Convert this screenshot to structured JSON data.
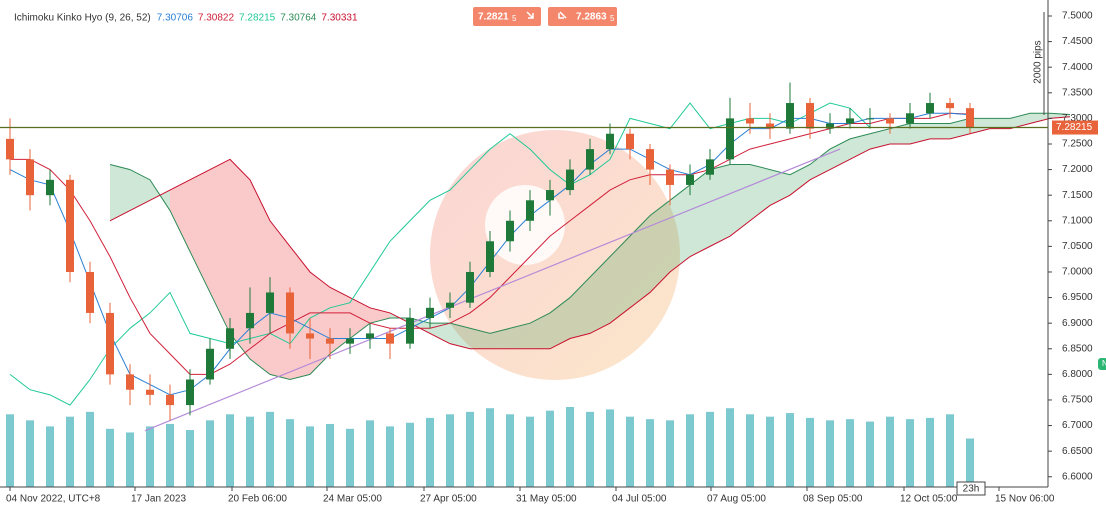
{
  "chart_data": {
    "type": "candlestick",
    "legend_title": "Ichimoku Kinko Hyo (9, 26, 52)",
    "up_color": "#1f7a3a",
    "down_color": "#e8633a",
    "ylim": [
      6.58,
      7.53125
    ],
    "yticks": [
      {
        "value": 7.5,
        "label": "7.5000"
      },
      {
        "value": 7.45,
        "label": "7.4500"
      },
      {
        "value": 7.4,
        "label": "7.4000"
      },
      {
        "value": 7.35,
        "label": "7.3500"
      },
      {
        "value": 7.3,
        "label": "7.3000"
      },
      {
        "value": 7.25,
        "label": "7.2500"
      },
      {
        "value": 7.2,
        "label": "7.2000"
      },
      {
        "value": 7.15,
        "label": "7.1500"
      },
      {
        "value": 7.1,
        "label": "7.1000"
      },
      {
        "value": 7.05,
        "label": "7.0500"
      },
      {
        "value": 7.0,
        "label": "7.0000"
      },
      {
        "value": 6.95,
        "label": "6.9500"
      },
      {
        "value": 6.9,
        "label": "6.9000"
      },
      {
        "value": 6.85,
        "label": "6.8500"
      },
      {
        "value": 6.8,
        "label": "6.8000"
      },
      {
        "value": 6.75,
        "label": "6.7500"
      },
      {
        "value": 6.7,
        "label": "6.7000"
      },
      {
        "value": 6.65,
        "label": "6.6500"
      },
      {
        "value": 6.6,
        "label": "6.6000"
      }
    ],
    "xticks": [
      {
        "value": 0,
        "label": "04 Nov 2022, UTC+8"
      },
      {
        "value": 6.25,
        "label": "17 Jan 2023"
      },
      {
        "value": 11.1,
        "label": "20 Feb 06:00"
      },
      {
        "value": 15.85,
        "label": "24 Mar 05:00"
      },
      {
        "value": 20.7,
        "label": "27 Apr 05:00"
      },
      {
        "value": 25.5,
        "label": "31 May 05:00"
      },
      {
        "value": 30.3,
        "label": "04 Jul 05:00"
      },
      {
        "value": 35.05,
        "label": "07 Aug 05:00"
      },
      {
        "value": 39.85,
        "label": "08 Sep 05:00"
      },
      {
        "value": 44.7,
        "label": "12 Oct 05:00"
      },
      {
        "value": 49.45,
        "label": "15 Nov 06:00"
      }
    ],
    "candles": [
      [
        7.26,
        7.3,
        7.19,
        7.22
      ],
      [
        7.22,
        7.24,
        7.12,
        7.15
      ],
      [
        7.15,
        7.2,
        7.13,
        7.18
      ],
      [
        7.18,
        7.19,
        6.98,
        7.0
      ],
      [
        7.0,
        7.02,
        6.9,
        6.92
      ],
      [
        6.92,
        6.94,
        6.78,
        6.8
      ],
      [
        6.8,
        6.82,
        6.74,
        6.77
      ],
      [
        6.77,
        6.8,
        6.74,
        6.76
      ],
      [
        6.76,
        6.78,
        6.71,
        6.74
      ],
      [
        6.74,
        6.81,
        6.72,
        6.79
      ],
      [
        6.79,
        6.87,
        6.78,
        6.85
      ],
      [
        6.85,
        6.91,
        6.83,
        6.89
      ],
      [
        6.89,
        6.97,
        6.86,
        6.92
      ],
      [
        6.92,
        6.99,
        6.88,
        6.96
      ],
      [
        6.96,
        6.97,
        6.85,
        6.88
      ],
      [
        6.88,
        6.91,
        6.83,
        6.87
      ],
      [
        6.87,
        6.89,
        6.83,
        6.86
      ],
      [
        6.86,
        6.89,
        6.84,
        6.87
      ],
      [
        6.87,
        6.9,
        6.85,
        6.88
      ],
      [
        6.88,
        6.89,
        6.83,
        6.86
      ],
      [
        6.86,
        6.93,
        6.85,
        6.91
      ],
      [
        6.91,
        6.95,
        6.89,
        6.93
      ],
      [
        6.93,
        6.96,
        6.91,
        6.94
      ],
      [
        6.94,
        7.02,
        6.93,
        7.0
      ],
      [
        7.0,
        7.08,
        6.99,
        7.06
      ],
      [
        7.06,
        7.12,
        7.04,
        7.1
      ],
      [
        7.1,
        7.16,
        7.08,
        7.14
      ],
      [
        7.14,
        7.18,
        7.11,
        7.16
      ],
      [
        7.16,
        7.22,
        7.15,
        7.2
      ],
      [
        7.2,
        7.26,
        7.19,
        7.24
      ],
      [
        7.24,
        7.29,
        7.23,
        7.27
      ],
      [
        7.27,
        7.28,
        7.22,
        7.24
      ],
      [
        7.24,
        7.25,
        7.17,
        7.2
      ],
      [
        7.2,
        7.21,
        7.13,
        7.17
      ],
      [
        7.17,
        7.21,
        7.15,
        7.19
      ],
      [
        7.19,
        7.24,
        7.18,
        7.22
      ],
      [
        7.22,
        7.34,
        7.21,
        7.3
      ],
      [
        7.3,
        7.33,
        7.27,
        7.29
      ],
      [
        7.29,
        7.31,
        7.26,
        7.28
      ],
      [
        7.28,
        7.37,
        7.27,
        7.33
      ],
      [
        7.33,
        7.34,
        7.26,
        7.28
      ],
      [
        7.28,
        7.31,
        7.27,
        7.29
      ],
      [
        7.29,
        7.32,
        7.28,
        7.3
      ],
      [
        7.3,
        7.32,
        7.28,
        7.3
      ],
      [
        7.3,
        7.31,
        7.27,
        7.29
      ],
      [
        7.29,
        7.33,
        7.28,
        7.31
      ],
      [
        7.31,
        7.35,
        7.3,
        7.33
      ],
      [
        7.33,
        7.34,
        7.3,
        7.32
      ],
      [
        7.32,
        7.33,
        7.27,
        7.28215
      ]
    ],
    "volume": [
      60,
      55,
      50,
      58,
      62,
      48,
      45,
      50,
      52,
      47,
      55,
      60,
      58,
      62,
      56,
      50,
      52,
      48,
      55,
      50,
      53,
      57,
      60,
      62,
      65,
      60,
      58,
      63,
      66,
      62,
      64,
      58,
      56,
      55,
      60,
      62,
      65,
      60,
      58,
      61,
      57,
      55,
      56,
      54,
      58,
      56,
      57,
      60,
      40
    ],
    "volume_color": "#5bbcc4",
    "tenkan": {
      "color": "#2a7fd4",
      "values": [
        7.2,
        7.18,
        7.17,
        7.08,
        6.98,
        6.88,
        6.8,
        6.78,
        6.76,
        6.77,
        6.8,
        6.85,
        6.89,
        6.92,
        6.91,
        6.89,
        6.87,
        6.87,
        6.87,
        6.87,
        6.89,
        6.91,
        6.93,
        6.97,
        7.02,
        7.07,
        7.11,
        7.14,
        7.17,
        7.21,
        7.24,
        7.24,
        7.22,
        7.2,
        7.19,
        7.21,
        7.25,
        7.28,
        7.28,
        7.3,
        7.3,
        7.29,
        7.29,
        7.3,
        7.3,
        7.3,
        7.31,
        7.31,
        7.30706
      ]
    },
    "kijun": {
      "color": "#d0203a",
      "values": [
        7.22,
        7.22,
        7.2,
        7.16,
        7.1,
        7.03,
        6.95,
        6.88,
        6.84,
        6.8,
        6.8,
        6.82,
        6.85,
        6.88,
        6.9,
        6.92,
        6.92,
        6.92,
        6.9,
        6.89,
        6.89,
        6.89,
        6.9,
        6.92,
        6.95,
        6.99,
        7.03,
        7.07,
        7.1,
        7.13,
        7.16,
        7.18,
        7.19,
        7.19,
        7.19,
        7.2,
        7.22,
        7.24,
        7.25,
        7.26,
        7.27,
        7.28,
        7.29,
        7.29,
        7.3,
        7.3,
        7.3,
        7.31,
        7.30822
      ]
    },
    "chikou": {
      "color": "#20c997",
      "values": [
        6.8,
        6.77,
        6.76,
        6.74,
        6.79,
        6.85,
        6.89,
        6.92,
        6.96,
        6.88,
        6.87,
        6.86,
        6.87,
        6.88,
        6.86,
        6.91,
        6.93,
        6.94,
        7.0,
        7.06,
        7.1,
        7.14,
        7.16,
        7.2,
        7.24,
        7.27,
        7.24,
        7.2,
        7.17,
        7.19,
        7.22,
        7.3,
        7.29,
        7.28,
        7.33,
        7.28,
        7.29,
        7.3,
        7.3,
        7.29,
        7.31,
        7.33,
        7.32,
        7.28215
      ]
    },
    "cloud_x": [
      5,
      6,
      7,
      8,
      9,
      10,
      11,
      12,
      13,
      14,
      15,
      16,
      17,
      18,
      19,
      20,
      21,
      22,
      23,
      24,
      25,
      26,
      27,
      28,
      29,
      30,
      31,
      32,
      33,
      34,
      35,
      36,
      37,
      38,
      39,
      40,
      41,
      42,
      43,
      44,
      45,
      46,
      47,
      48,
      49,
      50,
      51,
      52,
      53
    ],
    "span_a": {
      "color": "#2e8b57",
      "values": [
        7.21,
        7.2,
        7.18,
        7.12,
        7.04,
        6.96,
        6.88,
        6.83,
        6.8,
        6.79,
        6.8,
        6.84,
        6.87,
        6.9,
        6.91,
        6.91,
        6.9,
        6.9,
        6.89,
        6.88,
        6.89,
        6.9,
        6.92,
        6.95,
        6.99,
        7.03,
        7.07,
        7.11,
        7.14,
        7.17,
        7.2,
        7.21,
        7.21,
        7.2,
        7.19,
        7.21,
        7.24,
        7.26,
        7.27,
        7.28,
        7.29,
        7.29,
        7.29,
        7.3,
        7.3,
        7.3,
        7.31,
        7.31,
        7.30764
      ]
    },
    "span_b": {
      "color": "#c8102e",
      "values": [
        7.1,
        7.12,
        7.14,
        7.16,
        7.18,
        7.2,
        7.22,
        7.18,
        7.1,
        7.05,
        7.0,
        6.97,
        6.95,
        6.93,
        6.92,
        6.9,
        6.88,
        6.86,
        6.85,
        6.85,
        6.85,
        6.85,
        6.85,
        6.87,
        6.88,
        6.9,
        6.93,
        6.96,
        7.0,
        7.03,
        7.05,
        7.07,
        7.1,
        7.13,
        7.15,
        7.18,
        7.2,
        7.22,
        7.24,
        7.25,
        7.25,
        7.26,
        7.26,
        7.27,
        7.28,
        7.28,
        7.29,
        7.3,
        7.30331
      ]
    },
    "trendline": {
      "color": "#b58bd8",
      "x": [
        6.75,
        41.5
      ],
      "y": [
        6.69,
        7.24
      ]
    },
    "buttons": [
      {
        "price": "7.2821",
        "digit": "5"
      },
      {
        "price": "7.2863",
        "digit": "5"
      }
    ],
    "range_label": "2000 pips",
    "countdown": "23h",
    "marker": "N"
  }
}
